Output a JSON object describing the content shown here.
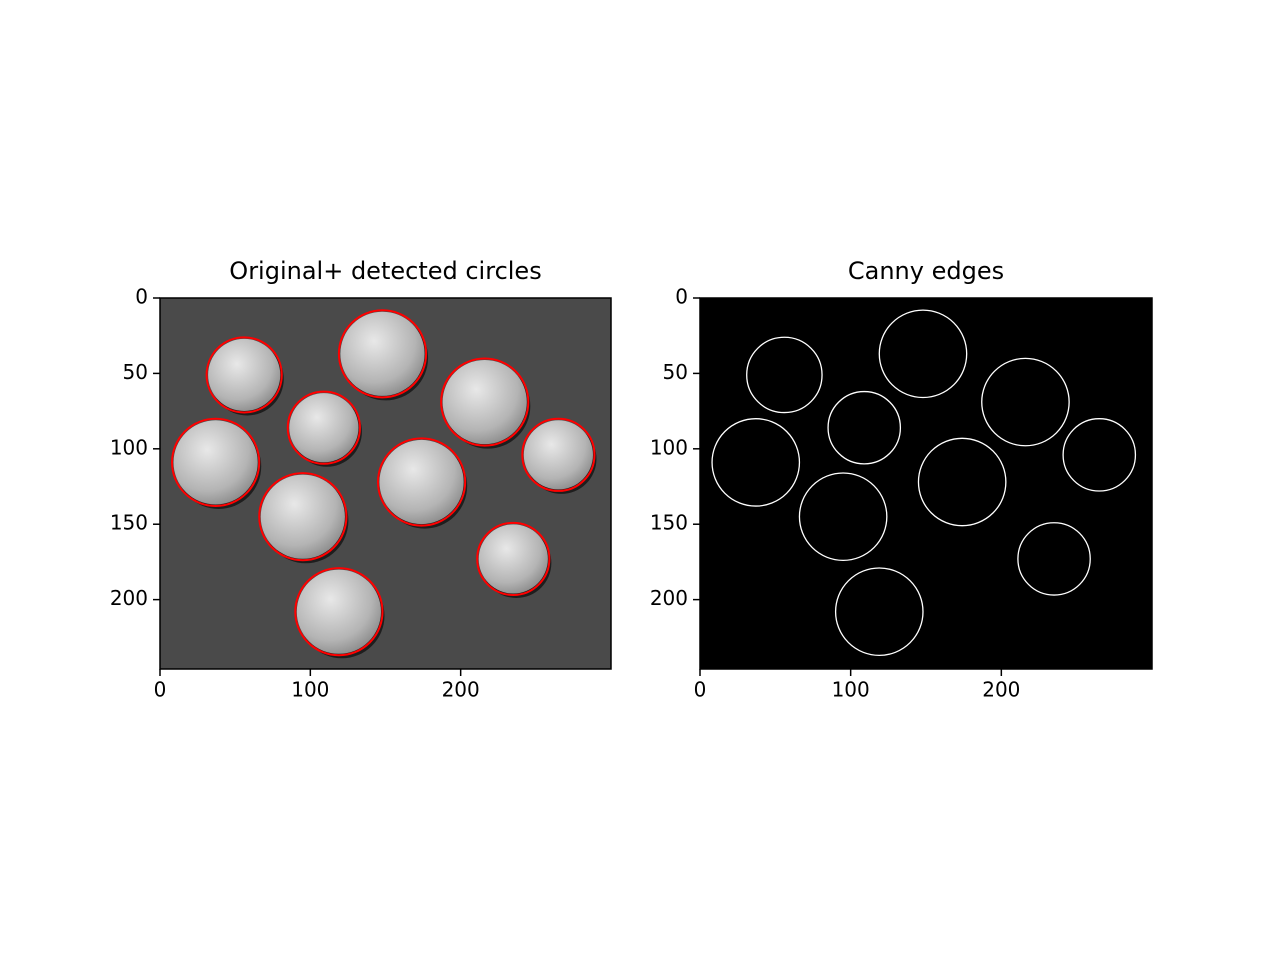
{
  "chart_data": [
    {
      "type": "image",
      "title": "Original+ detected circles",
      "xlim": [
        0,
        300
      ],
      "ylim": [
        246,
        0
      ],
      "xticks": [
        0,
        100,
        200
      ],
      "yticks": [
        0,
        50,
        100,
        150,
        200
      ],
      "background": "#4a4a4a",
      "circle_color": "#ff0000",
      "circles": {
        "x": [
          56,
          148,
          216,
          109,
          37,
          265,
          174,
          95,
          235,
          119
        ],
        "y": [
          51,
          37,
          69,
          86,
          109,
          104,
          122,
          145,
          173,
          208
        ],
        "r": [
          25,
          29,
          29,
          24,
          29,
          24,
          29,
          29,
          24,
          29
        ]
      }
    },
    {
      "type": "edges",
      "title": "Canny edges",
      "xlim": [
        0,
        300
      ],
      "ylim": [
        246,
        0
      ],
      "xticks": [
        0,
        100,
        200
      ],
      "yticks": [
        0,
        50,
        100,
        150,
        200
      ],
      "background": "#000000",
      "edge_color": "#ffffff"
    }
  ]
}
